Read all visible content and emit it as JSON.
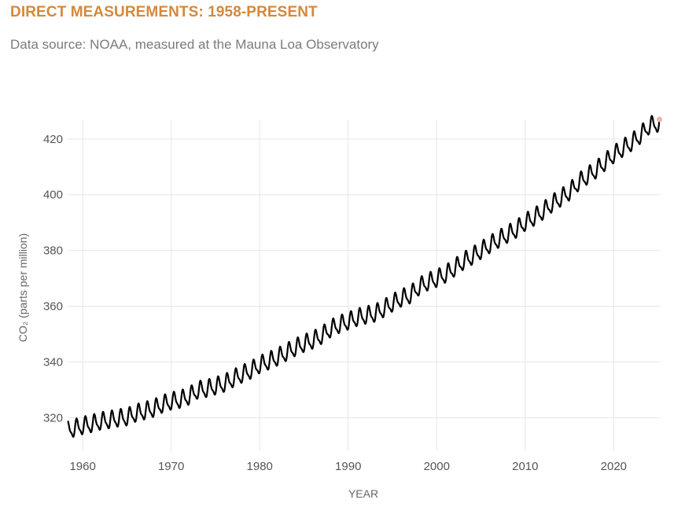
{
  "header": {
    "title": "DIRECT MEASUREMENTS: 1958-PRESENT",
    "subtitle": "Data source: NOAA, measured at the Mauna Loa Observatory"
  },
  "colors": {
    "title": "#d4883b",
    "line": "#000000",
    "grid": "#e6e6e6",
    "end_marker": "#e9b7ab"
  },
  "chart_data": {
    "type": "line",
    "title": "DIRECT MEASUREMENTS: 1958-PRESENT",
    "xlabel": "YEAR",
    "ylabel": "CO₂ (parts per million)",
    "xlim": [
      1958.3,
      2025.3
    ],
    "ylim": [
      308,
      427
    ],
    "x_ticks": [
      1960,
      1970,
      1980,
      1990,
      2000,
      2010,
      2020
    ],
    "y_ticks": [
      320,
      340,
      360,
      380,
      400,
      420
    ],
    "grid": true,
    "legend": "none",
    "series": [
      {
        "x": [
          1958.3,
          1959,
          1960,
          1961,
          1962,
          1963,
          1964,
          1965,
          1966,
          1967,
          1968,
          1969,
          1970,
          1971,
          1972,
          1973,
          1974,
          1975,
          1976,
          1977,
          1978,
          1979,
          1980,
          1981,
          1982,
          1983,
          1984,
          1985,
          1986,
          1987,
          1988,
          1989,
          1990,
          1991,
          1992,
          1993,
          1994,
          1995,
          1996,
          1997,
          1998,
          1999,
          2000,
          2001,
          2002,
          2003,
          2004,
          2005,
          2006,
          2007,
          2008,
          2009,
          2010,
          2011,
          2012,
          2013,
          2014,
          2015,
          2016,
          2017,
          2018,
          2019,
          2020,
          2021,
          2022,
          2023,
          2024,
          2025.2
        ],
        "y": [
          315.3,
          316.0,
          316.9,
          317.6,
          318.5,
          319.0,
          319.6,
          320.0,
          321.4,
          322.2,
          323.1,
          324.6,
          325.7,
          326.3,
          327.5,
          329.7,
          330.2,
          331.1,
          332.1,
          333.8,
          335.4,
          336.8,
          338.8,
          340.1,
          341.5,
          343.2,
          344.9,
          346.4,
          347.6,
          349.3,
          351.7,
          353.2,
          354.4,
          355.7,
          356.5,
          357.2,
          358.9,
          360.9,
          362.7,
          363.8,
          366.8,
          368.5,
          369.7,
          371.3,
          373.5,
          375.9,
          377.7,
          379.8,
          381.9,
          383.8,
          385.6,
          387.4,
          389.9,
          391.7,
          393.9,
          396.5,
          398.6,
          400.8,
          404.2,
          406.5,
          408.7,
          411.4,
          414.2,
          416.4,
          418.5,
          421.1,
          424.6,
          425.5
        ],
        "seasonal_amplitude_ppm": 6.5
      }
    ]
  }
}
